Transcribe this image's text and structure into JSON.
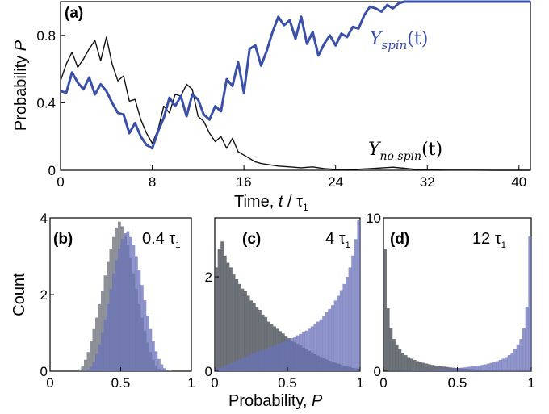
{
  "chart_data": [
    {
      "type": "line",
      "panel_label": "(a)",
      "xlabel_main": "Time, ",
      "xlabel_t": "t",
      "xlabel_sep": " / ",
      "xlabel_tau": "τ",
      "xlabel_sub": "1",
      "ylabel_main": "Probability ",
      "ylabel_var": "P",
      "xlim": [
        0,
        41
      ],
      "ylim": [
        0,
        1
      ],
      "x_ticks": [
        0,
        8,
        16,
        24,
        32,
        40
      ],
      "y_ticks": [
        0,
        0.4,
        0.8
      ],
      "y_tick_labels": [
        "0",
        "0.4",
        "0.8"
      ],
      "series": [
        {
          "name": "Y_spin(t)",
          "label_main": "Y",
          "label_sub": "spin",
          "label_arg": "(t)",
          "color": "#3a4fa8",
          "x": [
            0,
            0.5,
            1,
            1.5,
            2,
            2.5,
            3,
            3.5,
            4,
            4.5,
            5,
            5.5,
            6,
            6.5,
            7,
            7.5,
            8,
            8.5,
            9,
            9.5,
            10,
            10.5,
            11,
            11.5,
            12,
            12.5,
            13,
            13.5,
            14,
            14.5,
            15,
            15.5,
            16,
            16.5,
            17,
            17.5,
            18,
            18.5,
            19,
            19.5,
            20,
            20.5,
            21,
            21.5,
            22,
            22.5,
            23,
            23.5,
            24,
            24.5,
            25,
            25.5,
            26,
            26.5,
            27,
            27.5,
            28,
            28.5,
            29,
            29.5,
            30,
            31,
            32,
            34,
            36,
            38,
            40,
            41
          ],
          "y": [
            0.47,
            0.46,
            0.58,
            0.52,
            0.48,
            0.55,
            0.45,
            0.51,
            0.47,
            0.4,
            0.34,
            0.33,
            0.22,
            0.28,
            0.2,
            0.15,
            0.13,
            0.23,
            0.31,
            0.43,
            0.38,
            0.44,
            0.32,
            0.45,
            0.42,
            0.33,
            0.3,
            0.38,
            0.35,
            0.54,
            0.5,
            0.64,
            0.46,
            0.72,
            0.74,
            0.62,
            0.71,
            0.82,
            0.91,
            0.86,
            0.89,
            0.78,
            0.91,
            0.75,
            0.82,
            0.68,
            0.75,
            0.8,
            0.74,
            0.81,
            0.79,
            0.85,
            0.84,
            0.92,
            0.97,
            0.96,
            0.94,
            0.98,
            0.96,
            0.99,
            1.0,
            1.0,
            1.0,
            1.0,
            1.0,
            1.0,
            1.0,
            1.0
          ]
        },
        {
          "name": "Y_no spin(t)",
          "label_main": "Y",
          "label_sub": "no spin",
          "label_arg": "(t)",
          "color": "#111111",
          "x": [
            0,
            0.5,
            1,
            1.5,
            2,
            2.5,
            3,
            3.5,
            4,
            4.5,
            5,
            5.5,
            6,
            6.5,
            7,
            7.5,
            8,
            8.5,
            9,
            9.5,
            10,
            10.5,
            11,
            11.5,
            12,
            12.5,
            13,
            13.5,
            14,
            14.5,
            15,
            15.5,
            16,
            16.5,
            17,
            17.5,
            18,
            19,
            20,
            21,
            22,
            23,
            24,
            25,
            26,
            27,
            28,
            29,
            30,
            31,
            32,
            34,
            36,
            38,
            40,
            41
          ],
          "y": [
            0.53,
            0.63,
            0.7,
            0.61,
            0.66,
            0.72,
            0.77,
            0.65,
            0.79,
            0.63,
            0.53,
            0.56,
            0.41,
            0.42,
            0.3,
            0.22,
            0.16,
            0.24,
            0.38,
            0.34,
            0.45,
            0.44,
            0.51,
            0.48,
            0.32,
            0.29,
            0.22,
            0.17,
            0.2,
            0.13,
            0.19,
            0.11,
            0.09,
            0.07,
            0.05,
            0.04,
            0.035,
            0.025,
            0.02,
            0.015,
            0.02,
            0.01,
            0.005,
            0.004,
            0.006,
            0.01,
            0.014,
            0.018,
            0.012,
            0.005,
            0.002,
            0.001,
            0.001,
            0.0,
            0.0,
            0.0
          ]
        }
      ]
    },
    {
      "type": "histogram",
      "panel_label": "(b)",
      "time_label_num": "0.4 ",
      "time_label_tau": "τ",
      "time_label_sub": "1",
      "ylabel": "Count",
      "xlim": [
        0,
        1
      ],
      "ylim": [
        0,
        4
      ],
      "x_ticks": [
        0,
        0.5,
        1
      ],
      "x_tick_labels": [
        "0",
        "0.5",
        "1"
      ],
      "y_ticks": [
        0,
        2,
        4
      ],
      "bin_edges_start": 0,
      "bin_width": 0.02,
      "series": [
        {
          "name": "",
          "color": "#7a7f86",
          "values": [
            0,
            0,
            0,
            0,
            0,
            0,
            0,
            0,
            0,
            0,
            0.05,
            0.15,
            0.3,
            0.5,
            0.8,
            1.1,
            1.4,
            1.75,
            2.1,
            2.5,
            2.85,
            3.2,
            3.5,
            3.75,
            3.9,
            3.78,
            3.55,
            3.3,
            2.95,
            2.55,
            2.15,
            1.75,
            1.4,
            1.05,
            0.75,
            0.5,
            0.3,
            0.15,
            0.06,
            0.02,
            0,
            0,
            0,
            0,
            0,
            0,
            0,
            0,
            0,
            0
          ]
        },
        {
          "name": "",
          "color": "#6a72b8",
          "values": [
            0,
            0,
            0,
            0,
            0,
            0,
            0,
            0,
            0,
            0,
            0,
            0,
            0.02,
            0.05,
            0.12,
            0.25,
            0.45,
            0.7,
            1.0,
            1.35,
            1.75,
            2.15,
            2.55,
            2.9,
            3.2,
            3.45,
            3.6,
            3.65,
            3.5,
            3.3,
            3.0,
            2.65,
            2.25,
            1.85,
            1.45,
            1.1,
            0.78,
            0.52,
            0.32,
            0.18,
            0.08,
            0.03,
            0.01,
            0,
            0,
            0,
            0,
            0,
            0,
            0
          ]
        }
      ]
    },
    {
      "type": "histogram",
      "panel_label": "(c)",
      "time_label_num": "4 ",
      "time_label_tau": "τ",
      "time_label_sub": "1",
      "xlim": [
        0,
        1
      ],
      "ylim": [
        0,
        3.25
      ],
      "x_ticks": [
        0,
        0.5,
        1
      ],
      "x_tick_labels": [
        "0",
        "0.5",
        "1"
      ],
      "y_ticks": [
        0,
        2
      ],
      "bin_edges_start": 0,
      "bin_width": 0.02,
      "series": [
        {
          "name": "",
          "color": "#555a61",
          "values": [
            2.2,
            2.6,
            2.75,
            2.45,
            2.3,
            2.2,
            2.05,
            1.95,
            1.85,
            1.75,
            1.7,
            1.6,
            1.5,
            1.45,
            1.35,
            1.3,
            1.2,
            1.15,
            1.05,
            1.0,
            0.95,
            0.9,
            0.85,
            0.8,
            0.75,
            0.7,
            0.65,
            0.62,
            0.58,
            0.55,
            0.5,
            0.46,
            0.43,
            0.4,
            0.36,
            0.33,
            0.3,
            0.28,
            0.25,
            0.22,
            0.2,
            0.18,
            0.16,
            0.14,
            0.12,
            0.1,
            0.09,
            0.07,
            0.06,
            0.05
          ]
        },
        {
          "name": "",
          "color": "#6a72b8",
          "values": [
            0.05,
            0.07,
            0.09,
            0.12,
            0.14,
            0.17,
            0.2,
            0.22,
            0.25,
            0.28,
            0.3,
            0.33,
            0.36,
            0.38,
            0.41,
            0.43,
            0.45,
            0.47,
            0.5,
            0.52,
            0.55,
            0.57,
            0.6,
            0.62,
            0.65,
            0.68,
            0.7,
            0.73,
            0.76,
            0.79,
            0.82,
            0.86,
            0.9,
            0.95,
            1.0,
            1.05,
            1.1,
            1.17,
            1.25,
            1.32,
            1.4,
            1.5,
            1.6,
            1.72,
            1.85,
            2.0,
            2.2,
            2.45,
            2.8,
            3.2
          ]
        }
      ]
    },
    {
      "type": "histogram",
      "panel_label": "(d)",
      "time_label_num": "12 ",
      "time_label_tau": "τ",
      "time_label_sub": "1",
      "xlim": [
        0,
        1
      ],
      "ylim": [
        0,
        10
      ],
      "x_ticks": [
        0,
        0.5,
        1
      ],
      "x_tick_labels": [
        "0",
        "0.5",
        "1"
      ],
      "y_ticks": [
        0,
        10
      ],
      "bin_edges_start": 0,
      "bin_width": 0.02,
      "series": [
        {
          "name": "",
          "color": "#555a61",
          "values": [
            8.0,
            4.1,
            2.8,
            2.1,
            1.75,
            1.45,
            1.2,
            1.05,
            0.92,
            0.82,
            0.74,
            0.66,
            0.6,
            0.55,
            0.5,
            0.45,
            0.41,
            0.38,
            0.35,
            0.32,
            0.3,
            0.28,
            0.25,
            0.23,
            0.21,
            0.2,
            0.18,
            0.16,
            0.15,
            0.13,
            0.12,
            0.1,
            0.09,
            0.08,
            0.07,
            0.06,
            0.05,
            0.04,
            0.04,
            0.03,
            0.03,
            0.02,
            0.02,
            0.02,
            0.01,
            0.01,
            0.01,
            0.01,
            0.01,
            0.0
          ]
        },
        {
          "name": "",
          "color": "#6a72b8",
          "values": [
            0.0,
            0.01,
            0.01,
            0.01,
            0.01,
            0.01,
            0.02,
            0.02,
            0.02,
            0.03,
            0.03,
            0.04,
            0.04,
            0.05,
            0.06,
            0.07,
            0.08,
            0.09,
            0.1,
            0.12,
            0.13,
            0.15,
            0.16,
            0.18,
            0.2,
            0.21,
            0.23,
            0.25,
            0.28,
            0.3,
            0.32,
            0.35,
            0.38,
            0.41,
            0.45,
            0.5,
            0.55,
            0.6,
            0.66,
            0.74,
            0.82,
            0.92,
            1.05,
            1.2,
            1.45,
            1.75,
            2.1,
            2.8,
            4.2,
            8.8
          ]
        }
      ]
    }
  ],
  "shared_xlabel_main": "Probability, ",
  "shared_xlabel_var": "P"
}
